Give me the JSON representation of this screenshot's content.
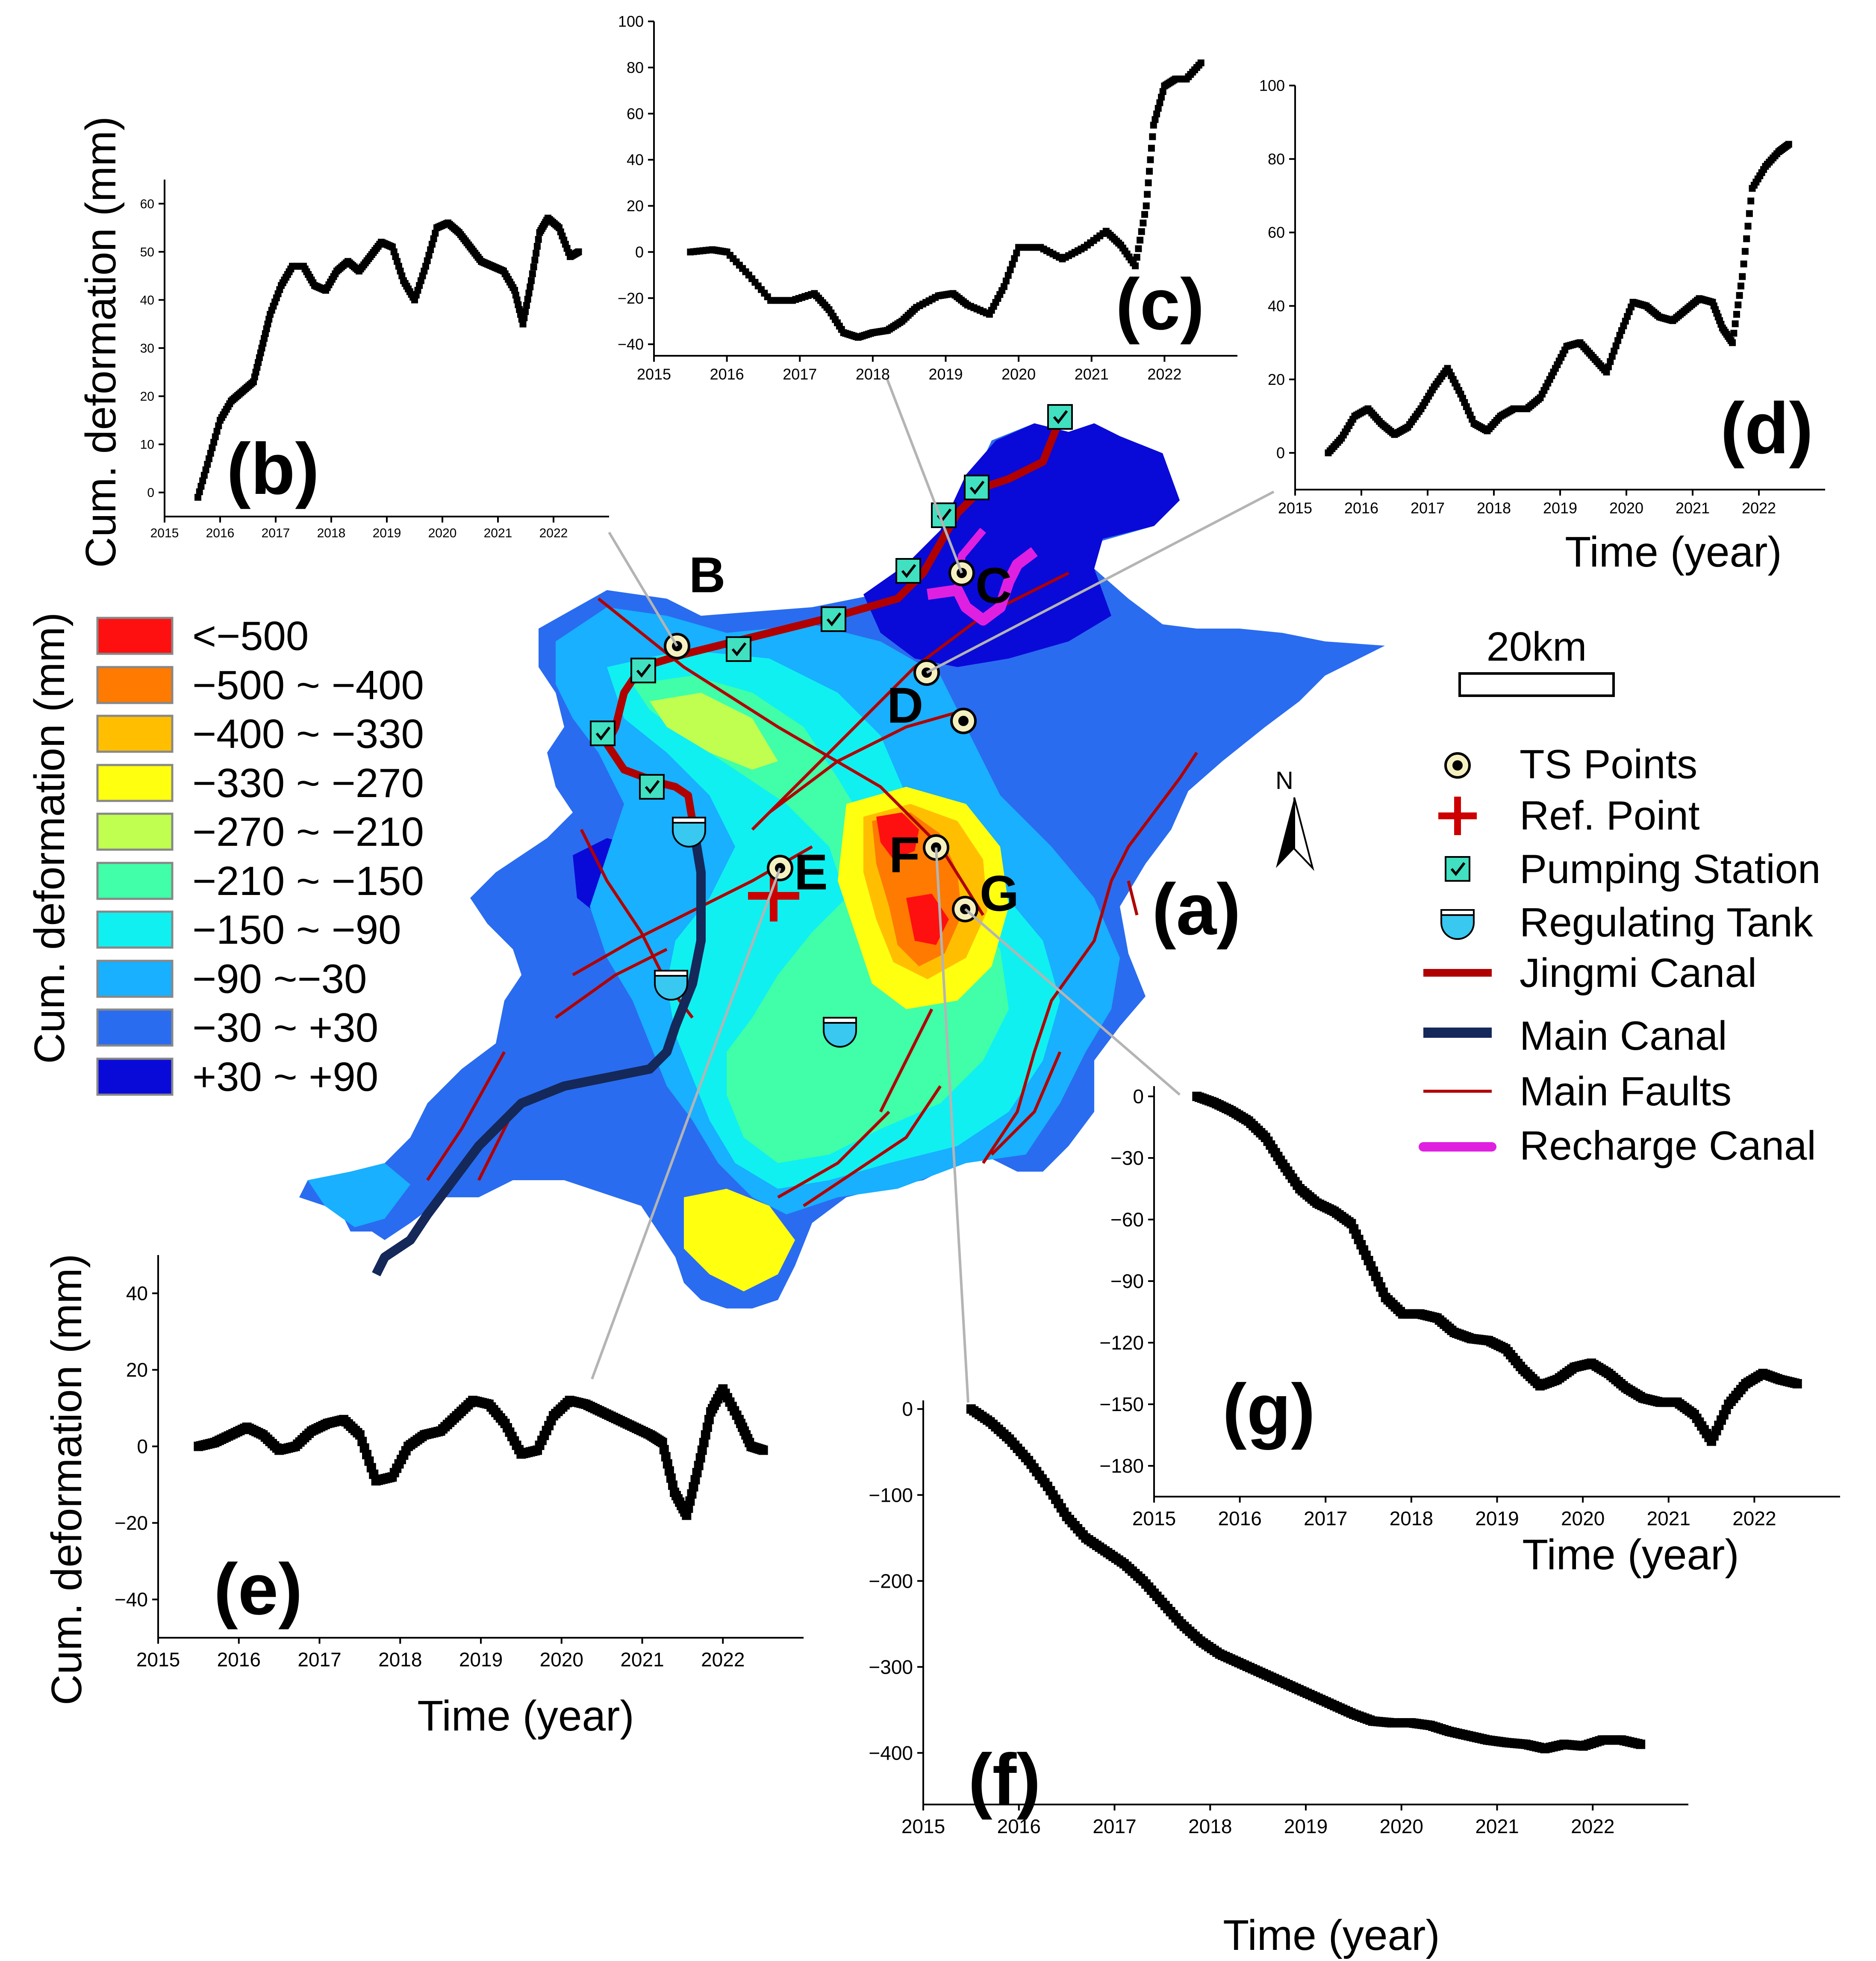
{
  "figure": {
    "panel_labels": {
      "a": "(a)",
      "b": "(b)",
      "c": "(c)",
      "d": "(d)",
      "e": "(e)",
      "f": "(f)",
      "g": "(g)"
    },
    "y_label": "Cum. deformation (mm)",
    "x_label": "Time (year)"
  },
  "map": {
    "point_labels": [
      "B",
      "C",
      "D",
      "E",
      "F",
      "G"
    ],
    "scale_bar": "20km",
    "north": "N",
    "colors": {
      "jingmi_canal": "#b00000",
      "main_canal": "#14285a",
      "faults": "#b00000",
      "recharge": "#e020e0",
      "pump": "#40e0c0"
    }
  },
  "legend": {
    "title": "Cum. deformation (mm)",
    "classes": [
      {
        "label": "<−500",
        "color": "#ff1010"
      },
      {
        "label": "−500 ~ −400",
        "color": "#ff7a00"
      },
      {
        "label": "−400 ~ −330",
        "color": "#ffbf00"
      },
      {
        "label": "−330 ~ −270",
        "color": "#ffff10"
      },
      {
        "label": "−270 ~ −210",
        "color": "#c0ff50"
      },
      {
        "label": "−210 ~ −150",
        "color": "#40ffa8"
      },
      {
        "label": "−150 ~ −90",
        "color": "#10f0f0"
      },
      {
        "label": "−90 ~−30",
        "color": "#18b0ff"
      },
      {
        "label": "−30 ~ +30",
        "color": "#2a6cf0"
      },
      {
        "label": "+30 ~ +90",
        "color": "#0a0ad8"
      }
    ],
    "symbols": [
      {
        "label": "TS Points",
        "icon": "ts-point-icon"
      },
      {
        "label": "Ref. Point",
        "icon": "ref-point-icon"
      },
      {
        "label": "Pumping Station",
        "icon": "pumping-station-icon"
      },
      {
        "label": "Regulating Tank",
        "icon": "regulating-tank-icon"
      },
      {
        "label": "Jingmi Canal",
        "icon": "jingmi-canal-line"
      },
      {
        "label": "Main Canal",
        "icon": "main-canal-line"
      },
      {
        "label": "Main Faults",
        "icon": "main-faults-line"
      },
      {
        "label": "Recharge Canal",
        "icon": "recharge-canal-line"
      }
    ]
  },
  "chart_data": [
    {
      "type": "scatter",
      "panel": "(b)",
      "point": "B",
      "title": "",
      "xlabel": "",
      "ylabel": "Cum. deformation (mm)",
      "xlim": [
        2015,
        2023
      ],
      "ylim": [
        -5,
        65
      ],
      "xticks": [
        2015,
        2016,
        2017,
        2018,
        2019,
        2020,
        2021,
        2022
      ],
      "yticks": [
        0,
        10,
        20,
        30,
        40,
        50,
        60
      ],
      "x": [
        2015.6,
        2015.8,
        2016.0,
        2016.2,
        2016.4,
        2016.6,
        2016.75,
        2016.9,
        2017.1,
        2017.3,
        2017.5,
        2017.7,
        2017.9,
        2018.1,
        2018.3,
        2018.5,
        2018.7,
        2018.9,
        2019.1,
        2019.3,
        2019.5,
        2019.7,
        2019.9,
        2020.1,
        2020.3,
        2020.5,
        2020.7,
        2020.9,
        2021.1,
        2021.3,
        2021.45,
        2021.6,
        2021.75,
        2021.9,
        2022.1,
        2022.3,
        2022.45
      ],
      "y": [
        -1,
        7,
        15,
        19,
        21,
        23,
        30,
        37,
        43,
        47,
        47,
        43,
        42,
        46,
        48,
        46,
        49,
        52,
        51,
        44,
        40,
        47,
        55,
        56,
        54,
        51,
        48,
        47,
        46,
        42,
        35,
        44,
        54,
        57,
        55,
        49,
        50
      ]
    },
    {
      "type": "scatter",
      "panel": "(c)",
      "point": "C",
      "title": "",
      "xlabel": "",
      "ylabel": "",
      "xlim": [
        2015,
        2023
      ],
      "ylim": [
        -45,
        100
      ],
      "xticks": [
        2015,
        2016,
        2017,
        2018,
        2019,
        2020,
        2021,
        2022
      ],
      "yticks": [
        -40,
        -20,
        0,
        20,
        40,
        60,
        80,
        100
      ],
      "x": [
        2015.5,
        2015.8,
        2016.0,
        2016.3,
        2016.6,
        2016.9,
        2017.2,
        2017.4,
        2017.6,
        2017.8,
        2018.0,
        2018.2,
        2018.4,
        2018.6,
        2018.9,
        2019.1,
        2019.3,
        2019.6,
        2019.8,
        2020.0,
        2020.3,
        2020.6,
        2020.9,
        2021.2,
        2021.4,
        2021.6,
        2021.75,
        2021.85,
        2022.0,
        2022.15,
        2022.3,
        2022.5
      ],
      "y": [
        0,
        1,
        0,
        -10,
        -21,
        -21,
        -18,
        -25,
        -35,
        -37,
        -35,
        -34,
        -30,
        -24,
        -19,
        -18,
        -23,
        -27,
        -15,
        2,
        2,
        -3,
        2,
        9,
        3,
        -6,
        20,
        55,
        72,
        75,
        75,
        82
      ]
    },
    {
      "type": "scatter",
      "panel": "(d)",
      "point": "D",
      "title": "",
      "xlabel": "Time (year)",
      "ylabel": "",
      "xlim": [
        2015,
        2023
      ],
      "ylim": [
        -10,
        100
      ],
      "xticks": [
        2015,
        2016,
        2017,
        2018,
        2019,
        2020,
        2021,
        2022
      ],
      "yticks": [
        0,
        20,
        40,
        60,
        80,
        100
      ],
      "x": [
        2015.5,
        2015.7,
        2015.9,
        2016.1,
        2016.3,
        2016.5,
        2016.7,
        2016.9,
        2017.1,
        2017.3,
        2017.5,
        2017.7,
        2017.9,
        2018.1,
        2018.3,
        2018.5,
        2018.7,
        2018.9,
        2019.1,
        2019.3,
        2019.5,
        2019.7,
        2019.9,
        2020.1,
        2020.3,
        2020.5,
        2020.7,
        2020.9,
        2021.1,
        2021.3,
        2021.45,
        2021.6,
        2021.75,
        2021.9,
        2022.1,
        2022.3,
        2022.45
      ],
      "y": [
        0,
        4,
        10,
        12,
        8,
        5,
        7,
        12,
        18,
        23,
        16,
        8,
        6,
        10,
        12,
        12,
        15,
        22,
        29,
        30,
        26,
        22,
        32,
        41,
        40,
        37,
        36,
        39,
        42,
        41,
        34,
        30,
        48,
        72,
        78,
        82,
        84
      ]
    },
    {
      "type": "scatter",
      "panel": "(e)",
      "point": "E",
      "title": "",
      "xlabel": "Time (year)",
      "ylabel": "Cum. deformation (mm)",
      "xlim": [
        2015,
        2023
      ],
      "ylim": [
        -50,
        50
      ],
      "xticks": [
        2015,
        2016,
        2017,
        2018,
        2019,
        2020,
        2021,
        2022
      ],
      "yticks": [
        -40,
        -20,
        0,
        20,
        40
      ],
      "x": [
        2015.5,
        2015.7,
        2015.9,
        2016.1,
        2016.3,
        2016.5,
        2016.7,
        2016.9,
        2017.1,
        2017.3,
        2017.5,
        2017.7,
        2017.9,
        2018.1,
        2018.3,
        2018.5,
        2018.7,
        2018.9,
        2019.1,
        2019.3,
        2019.5,
        2019.7,
        2019.9,
        2020.1,
        2020.3,
        2020.5,
        2020.7,
        2020.9,
        2021.1,
        2021.25,
        2021.4,
        2021.55,
        2021.7,
        2021.85,
        2022.0,
        2022.2,
        2022.35,
        2022.5
      ],
      "y": [
        0,
        1,
        3,
        5,
        3,
        -1,
        0,
        4,
        6,
        7,
        3,
        -9,
        -8,
        0,
        3,
        4,
        8,
        12,
        11,
        6,
        -2,
        -1,
        8,
        12,
        11,
        9,
        7,
        5,
        3,
        1,
        -12,
        -18,
        -5,
        9,
        15,
        7,
        0,
        -1
      ]
    },
    {
      "type": "scatter",
      "panel": "(f)",
      "point": "F",
      "title": "",
      "xlabel": "Time (year)",
      "ylabel": "",
      "xlim": [
        2015,
        2023
      ],
      "ylim": [
        -460,
        10
      ],
      "xticks": [
        2015,
        2016,
        2017,
        2018,
        2019,
        2020,
        2021,
        2022
      ],
      "yticks": [
        -400,
        -300,
        -200,
        -100,
        0
      ],
      "x": [
        2015.5,
        2015.7,
        2015.9,
        2016.1,
        2016.3,
        2016.5,
        2016.7,
        2016.9,
        2017.1,
        2017.3,
        2017.5,
        2017.7,
        2017.9,
        2018.1,
        2018.3,
        2018.5,
        2018.7,
        2018.9,
        2019.1,
        2019.3,
        2019.5,
        2019.7,
        2019.9,
        2020.1,
        2020.3,
        2020.5,
        2020.7,
        2020.9,
        2021.1,
        2021.3,
        2021.5,
        2021.7,
        2021.9,
        2022.1,
        2022.3,
        2022.5
      ],
      "y": [
        0,
        -15,
        -35,
        -60,
        -90,
        -125,
        -150,
        -165,
        -180,
        -200,
        -225,
        -250,
        -270,
        -285,
        -295,
        -305,
        -315,
        -325,
        -335,
        -345,
        -355,
        -363,
        -365,
        -365,
        -368,
        -375,
        -380,
        -385,
        -388,
        -390,
        -395,
        -390,
        -392,
        -385,
        -385,
        -390
      ]
    },
    {
      "type": "scatter",
      "panel": "(g)",
      "point": "G",
      "title": "",
      "xlabel": "Time (year)",
      "ylabel": "",
      "xlim": [
        2015,
        2023
      ],
      "ylim": [
        -195,
        5
      ],
      "xticks": [
        2015,
        2016,
        2017,
        2018,
        2019,
        2020,
        2021,
        2022
      ],
      "yticks": [
        -180,
        -150,
        -120,
        -90,
        -60,
        -30,
        0
      ],
      "x": [
        2015.5,
        2015.7,
        2015.9,
        2016.1,
        2016.3,
        2016.5,
        2016.7,
        2016.9,
        2017.1,
        2017.3,
        2017.5,
        2017.7,
        2017.9,
        2018.1,
        2018.3,
        2018.5,
        2018.7,
        2018.9,
        2019.1,
        2019.3,
        2019.5,
        2019.7,
        2019.9,
        2020.1,
        2020.3,
        2020.5,
        2020.7,
        2020.9,
        2021.1,
        2021.3,
        2021.5,
        2021.7,
        2021.9,
        2022.1,
        2022.3,
        2022.5
      ],
      "y": [
        0,
        -3,
        -7,
        -12,
        -20,
        -33,
        -45,
        -52,
        -56,
        -62,
        -80,
        -98,
        -106,
        -106,
        -108,
        -115,
        -118,
        -119,
        -123,
        -133,
        -141,
        -138,
        -132,
        -130,
        -135,
        -142,
        -147,
        -149,
        -149,
        -155,
        -168,
        -150,
        -140,
        -135,
        -138,
        -140
      ]
    }
  ]
}
